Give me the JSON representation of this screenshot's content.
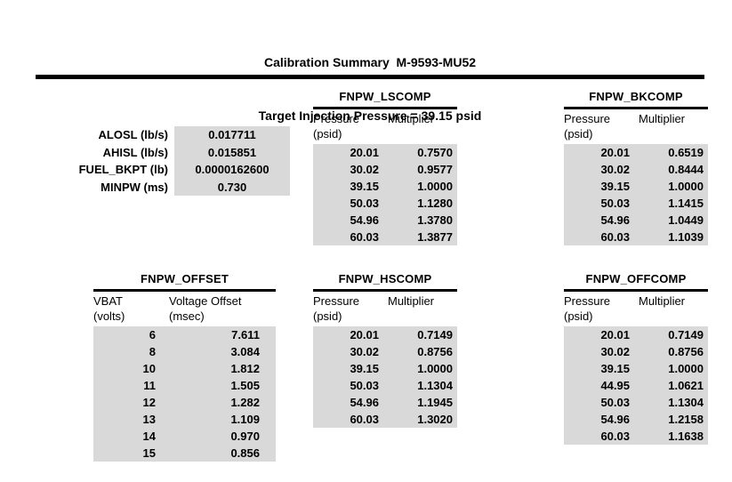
{
  "page": {
    "title_line1": "Calibration Summary  M-9593-MU52",
    "title_line2": "Target Injection Pressure = 39.15 psid"
  },
  "colors": {
    "shade": "#d9d9d9",
    "text": "#000000",
    "background": "#ffffff"
  },
  "parameters": [
    {
      "label": "ALOSL (lb/s)",
      "value": "0.017711"
    },
    {
      "label": "AHISL (lb/s)",
      "value": "0.015851"
    },
    {
      "label": "FUEL_BKPT (lb)",
      "value": "0.0000162600"
    },
    {
      "label": "MINPW (ms)",
      "value": "0.730"
    }
  ],
  "tables": {
    "lscomp": {
      "title": "FNPW_LSCOMP",
      "headers": {
        "col1": "Pressure",
        "col1_unit": "(psid)",
        "col2": "Multiplier",
        "col2_unit": ""
      },
      "rows": [
        [
          "20.01",
          "0.7570"
        ],
        [
          "30.02",
          "0.9577"
        ],
        [
          "39.15",
          "1.0000"
        ],
        [
          "50.03",
          "1.1280"
        ],
        [
          "54.96",
          "1.3780"
        ],
        [
          "60.03",
          "1.3877"
        ]
      ]
    },
    "bkcomp": {
      "title": "FNPW_BKCOMP",
      "headers": {
        "col1": "Pressure",
        "col1_unit": "(psid)",
        "col2": "Multiplier",
        "col2_unit": ""
      },
      "rows": [
        [
          "20.01",
          "0.6519"
        ],
        [
          "30.02",
          "0.8444"
        ],
        [
          "39.15",
          "1.0000"
        ],
        [
          "50.03",
          "1.1415"
        ],
        [
          "54.96",
          "1.0449"
        ],
        [
          "60.03",
          "1.1039"
        ]
      ]
    },
    "offset": {
      "title": "FNPW_OFFSET",
      "headers": {
        "col1": "VBAT",
        "col1_unit": "(volts)",
        "col2": "Voltage Offset",
        "col2_unit": "(msec)"
      },
      "rows": [
        [
          "6",
          "7.611"
        ],
        [
          "8",
          "3.084"
        ],
        [
          "10",
          "1.812"
        ],
        [
          "11",
          "1.505"
        ],
        [
          "12",
          "1.282"
        ],
        [
          "13",
          "1.109"
        ],
        [
          "14",
          "0.970"
        ],
        [
          "15",
          "0.856"
        ]
      ]
    },
    "hscomp": {
      "title": "FNPW_HSCOMP",
      "headers": {
        "col1": "Pressure",
        "col1_unit": "(psid)",
        "col2": "Multiplier",
        "col2_unit": ""
      },
      "rows": [
        [
          "20.01",
          "0.7149"
        ],
        [
          "30.02",
          "0.8756"
        ],
        [
          "39.15",
          "1.0000"
        ],
        [
          "50.03",
          "1.1304"
        ],
        [
          "54.96",
          "1.1945"
        ],
        [
          "60.03",
          "1.3020"
        ]
      ]
    },
    "offcomp": {
      "title": "FNPW_OFFCOMP",
      "headers": {
        "col1": "Pressure",
        "col1_unit": "(psid)",
        "col2": "Multiplier",
        "col2_unit": ""
      },
      "rows": [
        [
          "20.01",
          "0.7149"
        ],
        [
          "30.02",
          "0.8756"
        ],
        [
          "39.15",
          "1.0000"
        ],
        [
          "44.95",
          "1.0621"
        ],
        [
          "50.03",
          "1.1304"
        ],
        [
          "54.96",
          "1.2158"
        ],
        [
          "60.03",
          "1.1638"
        ]
      ]
    }
  }
}
